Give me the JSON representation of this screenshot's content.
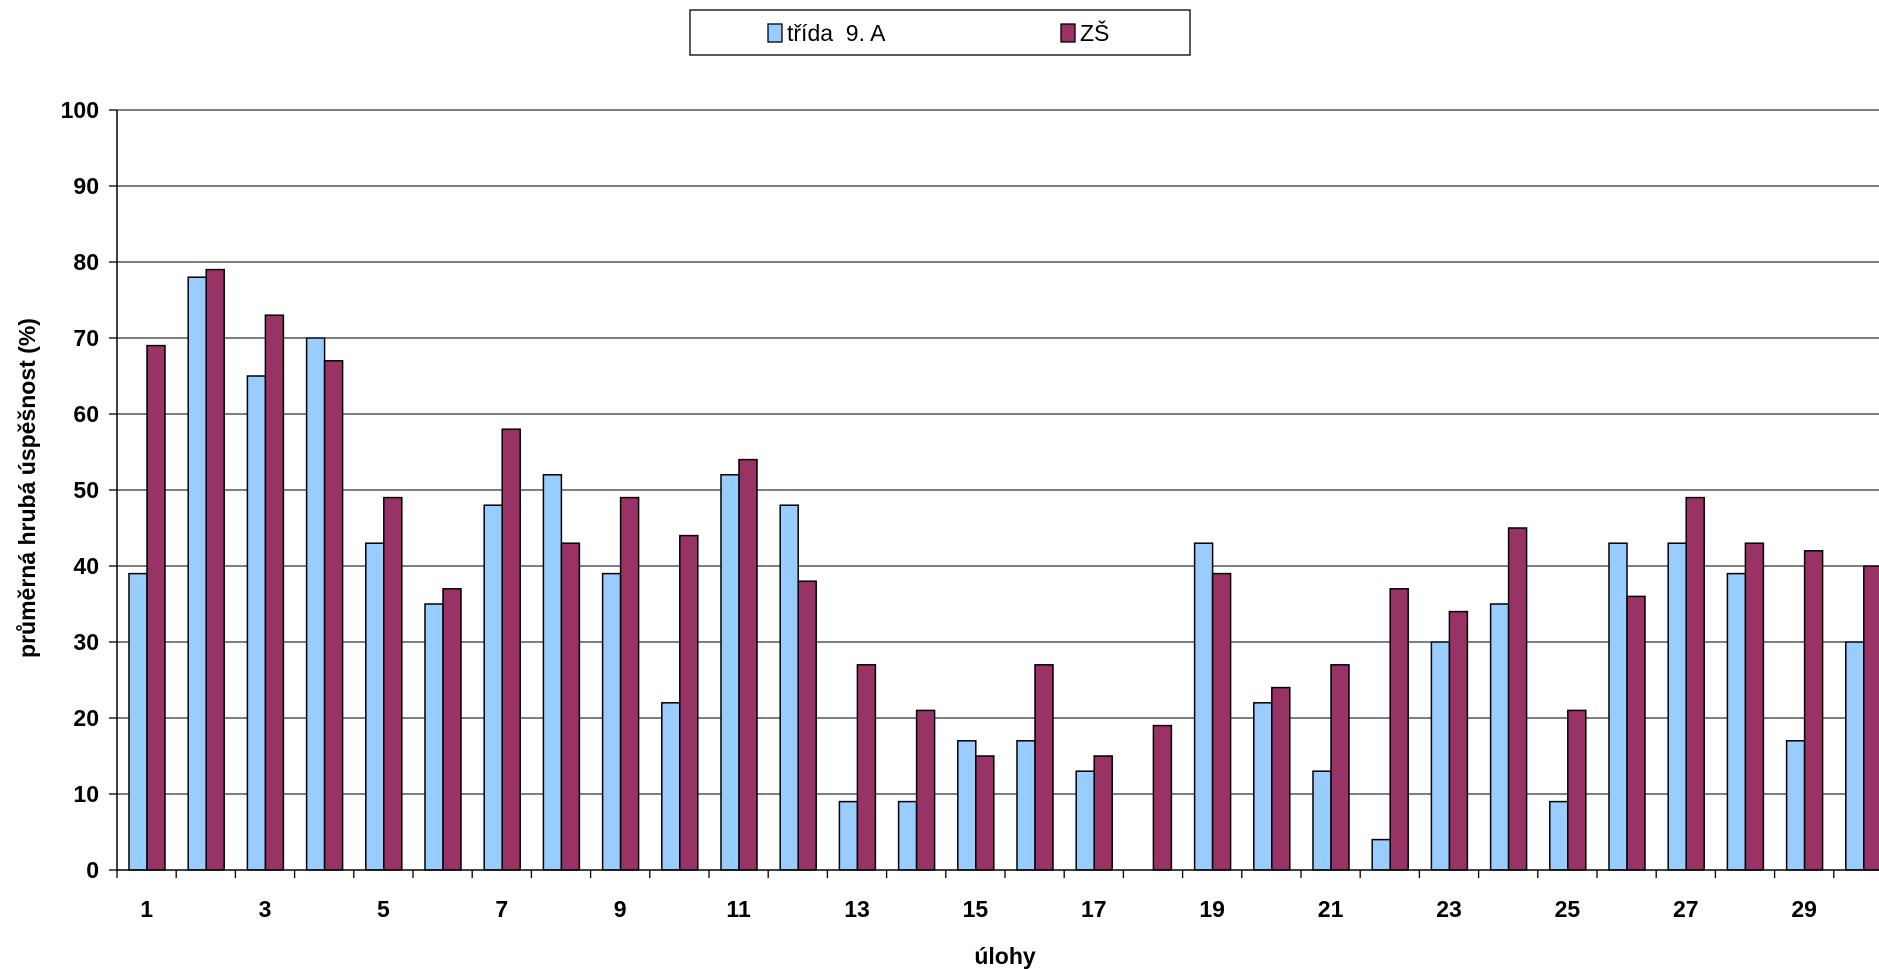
{
  "chart_data": {
    "type": "bar",
    "title": "",
    "xlabel": "úlohy",
    "ylabel": "průměrná hrubá úspěšnost (%)",
    "ylim": [
      0,
      100
    ],
    "yticks": [
      0,
      10,
      20,
      30,
      40,
      50,
      60,
      70,
      80,
      90,
      100
    ],
    "grid": true,
    "legend_position": "top-center",
    "categories": [
      "1",
      "2",
      "3",
      "4",
      "5",
      "6",
      "7",
      "8",
      "9",
      "10",
      "11",
      "12",
      "13",
      "14",
      "15",
      "16",
      "17",
      "18",
      "19",
      "20",
      "21",
      "22",
      "23",
      "24",
      "25",
      "26",
      "27",
      "28",
      "29",
      "30"
    ],
    "x_tick_labels": [
      "1",
      "",
      "3",
      "",
      "5",
      "",
      "7",
      "",
      "9",
      "",
      "11",
      "",
      "13",
      "",
      "15",
      "",
      "17",
      "",
      "19",
      "",
      "21",
      "",
      "23",
      "",
      "25",
      "",
      "27",
      "",
      "29",
      ""
    ],
    "series": [
      {
        "name": "třída  9. A",
        "color": "#99ccff",
        "values": [
          39,
          78,
          65,
          70,
          43,
          35,
          48,
          52,
          39,
          22,
          52,
          48,
          9,
          9,
          17,
          17,
          13,
          0,
          43,
          22,
          13,
          4,
          30,
          35,
          9,
          43,
          43,
          39,
          17,
          30
        ]
      },
      {
        "name": "ZŠ",
        "color": "#993366",
        "values": [
          69,
          79,
          73,
          67,
          49,
          37,
          58,
          43,
          49,
          44,
          54,
          38,
          27,
          21,
          15,
          27,
          15,
          19,
          39,
          24,
          27,
          37,
          34,
          45,
          21,
          36,
          49,
          43,
          42,
          40
        ]
      }
    ]
  }
}
